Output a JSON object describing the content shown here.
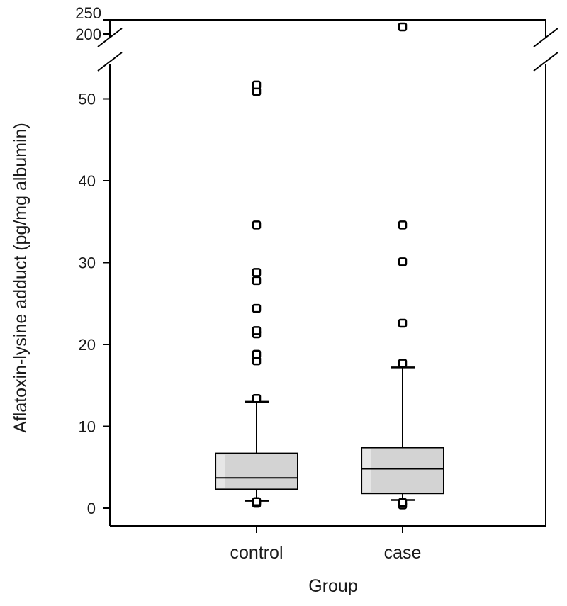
{
  "chart_data": {
    "type": "box",
    "title": "",
    "xlabel": "Group",
    "ylabel": "Aflatoxin-lysine adduct (pg/mg albumin)",
    "ylim": [
      0,
      55
    ],
    "y_break": {
      "lower_max": 55,
      "upper_ticks": [
        200,
        250
      ]
    },
    "yticks": [
      0,
      10,
      20,
      30,
      40,
      50
    ],
    "upper_tick_labels": [
      "250",
      "200"
    ],
    "categories": [
      "control",
      "case"
    ],
    "box_fill": "#d3d3d3",
    "groups": [
      {
        "name": "control",
        "q1": 2.3,
        "median": 3.7,
        "q3": 6.7,
        "whisker_low": 0.9,
        "whisker_high": 13.0,
        "outliers_high": [
          13.4,
          18.0,
          18.8,
          21.3,
          21.7,
          24.4,
          27.8,
          28.8,
          34.6,
          50.9,
          51.7
        ],
        "outliers_low": [
          0.6,
          0.8
        ]
      },
      {
        "name": "case",
        "q1": 1.8,
        "median": 4.8,
        "q3": 7.4,
        "whisker_low": 1.0,
        "whisker_high": 17.2,
        "outliers_high": [
          17.7,
          22.6,
          30.1,
          34.6
        ],
        "outliers_low": [
          0.4,
          0.7
        ],
        "outliers_upper_panel": [
          235
        ]
      }
    ]
  }
}
